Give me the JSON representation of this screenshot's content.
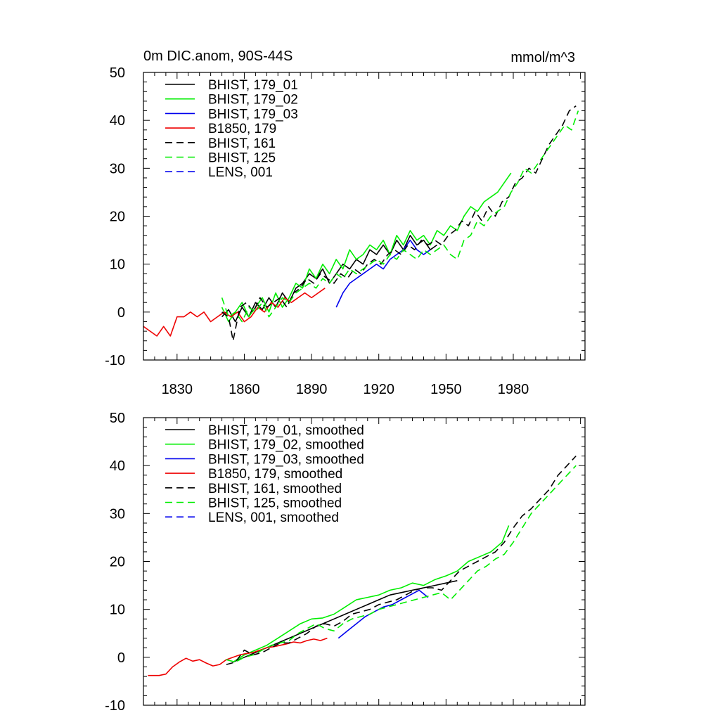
{
  "title_left": "0m DIC.anom, 90S-44S",
  "title_right": "mmol/m^3",
  "chart_data": [
    {
      "type": "line",
      "xlim": [
        1815,
        2012
      ],
      "ylim": [
        -10,
        50
      ],
      "x_ticks": [
        1830,
        1860,
        1890,
        1920,
        1950,
        1980
      ],
      "y_ticks": [
        -10,
        0,
        10,
        20,
        30,
        40,
        50
      ],
      "legend_position": "top-left",
      "series": [
        {
          "name": "BHIST, 179_01",
          "color": "#000000",
          "dash": "solid",
          "x": [
            1850,
            1853,
            1856,
            1859,
            1862,
            1865,
            1868,
            1871,
            1874,
            1877,
            1880,
            1883,
            1886,
            1889,
            1892,
            1895,
            1898,
            1901,
            1904,
            1907,
            1910,
            1913,
            1916,
            1919,
            1922,
            1925,
            1928,
            1931,
            1934,
            1937,
            1940,
            1943,
            1946
          ],
          "y": [
            -1,
            0.5,
            -2,
            1,
            -1,
            2,
            0.5,
            3,
            1,
            4,
            2,
            5,
            6,
            8,
            7,
            9,
            6,
            8,
            10,
            9,
            11,
            10,
            13,
            12,
            14,
            12,
            15,
            13,
            16,
            14,
            15,
            13,
            14
          ]
        },
        {
          "name": "BHIST, 179_02",
          "color": "#00ee00",
          "dash": "solid",
          "x": [
            1850,
            1853,
            1856,
            1859,
            1862,
            1865,
            1868,
            1871,
            1874,
            1877,
            1880,
            1883,
            1886,
            1889,
            1892,
            1895,
            1898,
            1901,
            1904,
            1907,
            1910,
            1913,
            1916,
            1919,
            1922,
            1925,
            1928,
            1931,
            1934,
            1937,
            1940,
            1943,
            1946,
            1949,
            1952,
            1955,
            1958,
            1961,
            1964,
            1967,
            1970,
            1973,
            1976,
            1979
          ],
          "y": [
            1,
            -2,
            0,
            2,
            -1,
            1,
            3,
            0,
            4,
            1,
            3,
            6,
            5,
            9,
            7,
            10,
            8,
            11,
            9,
            13,
            11,
            12,
            14,
            13,
            15,
            12,
            16,
            14,
            17,
            15,
            16,
            14,
            17,
            16,
            18,
            17,
            20,
            22,
            21,
            23,
            24,
            25,
            27,
            29
          ]
        },
        {
          "name": "BHIST, 179_03",
          "color": "#0000ee",
          "dash": "solid",
          "x": [
            1901,
            1904,
            1907,
            1910,
            1913,
            1916,
            1919,
            1922,
            1925,
            1928,
            1931,
            1934,
            1937,
            1940,
            1943
          ],
          "y": [
            1,
            4,
            6,
            7,
            8,
            9,
            10,
            9,
            11,
            12,
            13,
            15,
            13,
            12,
            13
          ]
        },
        {
          "name": "B1850, 179",
          "color": "#ee0000",
          "dash": "solid",
          "x": [
            1815,
            1818,
            1821,
            1824,
            1827,
            1830,
            1833,
            1836,
            1839,
            1842,
            1845,
            1848,
            1851,
            1854,
            1857,
            1860,
            1863,
            1866,
            1869,
            1872,
            1875,
            1878,
            1881,
            1884,
            1887,
            1890,
            1893,
            1896
          ],
          "y": [
            -3,
            -4,
            -5,
            -3,
            -5,
            -1,
            -1,
            0,
            -1,
            0,
            -2,
            -1,
            0,
            -1,
            0,
            -2,
            -1,
            1,
            0,
            2,
            1,
            3,
            2,
            3,
            4,
            3,
            4,
            5
          ]
        },
        {
          "name": "BHIST, 161",
          "color": "#000000",
          "dash": "dashed",
          "x": [
            1850,
            1853,
            1855,
            1858,
            1861,
            1864,
            1867,
            1870,
            1873,
            1876,
            1879,
            1882,
            1885,
            1888,
            1891,
            1894,
            1897,
            1900,
            1903,
            1906,
            1909,
            1912,
            1915,
            1918,
            1921,
            1924,
            1927,
            1930,
            1933,
            1936,
            1939,
            1942,
            1945,
            1948,
            1951,
            1954,
            1957,
            1960,
            1963,
            1966,
            1969,
            1972,
            1975,
            1978,
            1981,
            1984,
            1987,
            1990,
            1993,
            1996,
            1999,
            2002,
            2005,
            2008
          ],
          "y": [
            0,
            -1,
            -6,
            1,
            2,
            0,
            3,
            1,
            2,
            3,
            1,
            4,
            5,
            7,
            6,
            8,
            7,
            6,
            8,
            7,
            9,
            8,
            10,
            11,
            10,
            12,
            13,
            12,
            14,
            13,
            15,
            14,
            15,
            14,
            16,
            17,
            19,
            18,
            21,
            19,
            22,
            20,
            23,
            24,
            27,
            28,
            30,
            29,
            32,
            35,
            37,
            39,
            42,
            43
          ]
        },
        {
          "name": "BHIST, 125",
          "color": "#00ee00",
          "dash": "dashed",
          "x": [
            1850,
            1853,
            1856,
            1859,
            1862,
            1865,
            1868,
            1871,
            1874,
            1877,
            1880,
            1883,
            1886,
            1889,
            1892,
            1895,
            1898,
            1901,
            1904,
            1907,
            1910,
            1913,
            1916,
            1919,
            1922,
            1925,
            1928,
            1931,
            1934,
            1937,
            1940,
            1943,
            1946,
            1949,
            1952,
            1955,
            1958,
            1961,
            1964,
            1967,
            1970,
            1973,
            1976,
            1979,
            1982,
            1985,
            1988,
            1991,
            1994,
            1997,
            2000,
            2003,
            2006,
            2009
          ],
          "y": [
            3,
            -1,
            0,
            -2,
            1,
            0,
            2,
            -1,
            1,
            3,
            2,
            4,
            5,
            6,
            5,
            7,
            6,
            8,
            7,
            9,
            8,
            9,
            10,
            11,
            10,
            12,
            11,
            13,
            12,
            11,
            13,
            12,
            13,
            14,
            12,
            11,
            15,
            16,
            19,
            18,
            20,
            21,
            22,
            25,
            27,
            30,
            29,
            31,
            33,
            35,
            37,
            39,
            38,
            42
          ]
        },
        {
          "name": "LENS, 001",
          "color": "#0000ee",
          "dash": "dashed",
          "x": [],
          "y": []
        }
      ]
    },
    {
      "type": "line",
      "xlim": [
        1815,
        2012
      ],
      "ylim": [
        -10,
        50
      ],
      "x_ticks": [],
      "y_ticks": [
        -10,
        0,
        10,
        20,
        30,
        40,
        50
      ],
      "legend_position": "top-left",
      "series": [
        {
          "name": "BHIST, 179_01, smoothed",
          "color": "#000000",
          "dash": "solid",
          "x": [
            1855,
            1860,
            1865,
            1870,
            1875,
            1880,
            1885,
            1890,
            1895,
            1900,
            1905,
            1910,
            1915,
            1920,
            1925,
            1930,
            1935,
            1940,
            1945,
            1950,
            1955
          ],
          "y": [
            -1,
            0,
            1,
            2,
            3,
            4,
            5,
            6,
            7,
            8,
            9,
            10,
            11,
            12,
            13,
            13.5,
            14,
            14.5,
            15,
            15.5,
            16
          ]
        },
        {
          "name": "BHIST, 179_02, smoothed",
          "color": "#00ee00",
          "dash": "solid",
          "x": [
            1855,
            1860,
            1865,
            1870,
            1875,
            1880,
            1885,
            1890,
            1895,
            1900,
            1905,
            1910,
            1915,
            1920,
            1925,
            1930,
            1935,
            1940,
            1945,
            1950,
            1955,
            1960,
            1965,
            1970,
            1975,
            1978
          ],
          "y": [
            -1,
            0.5,
            1.5,
            2.5,
            4,
            5.5,
            7,
            8,
            8.2,
            9,
            10.5,
            12,
            12.5,
            13,
            14,
            14.5,
            15.5,
            15,
            16.2,
            17,
            18,
            20,
            21,
            22,
            24,
            27.5
          ]
        },
        {
          "name": "BHIST, 179_03, smoothed",
          "color": "#0000ee",
          "dash": "solid",
          "x": [
            1902,
            1906,
            1910,
            1914,
            1918,
            1922,
            1926,
            1930,
            1934,
            1938,
            1942
          ],
          "y": [
            4,
            5.5,
            7,
            8.5,
            9.5,
            10.5,
            11,
            12,
            13,
            14,
            12.5
          ]
        },
        {
          "name": "B1850, 179, smoothed",
          "color": "#ee0000",
          "dash": "solid",
          "x": [
            1817,
            1820,
            1822,
            1825,
            1828,
            1831,
            1834,
            1837,
            1840,
            1843,
            1846,
            1849,
            1852,
            1855,
            1858,
            1861,
            1864,
            1867,
            1870,
            1873,
            1876,
            1879,
            1882,
            1885,
            1888,
            1891,
            1894,
            1897
          ],
          "y": [
            -3.8,
            -3.8,
            -3.8,
            -3.5,
            -2,
            -1,
            -0.2,
            -0.8,
            -0.5,
            -1.2,
            -1.8,
            -1.5,
            -0.5,
            0,
            0.5,
            0.8,
            1,
            1.5,
            2,
            2.2,
            2.5,
            2.8,
            3.2,
            3,
            3.5,
            3.8,
            3.5,
            4
          ]
        },
        {
          "name": "BHIST, 161, smoothed",
          "color": "#000000",
          "dash": "dashed",
          "x": [
            1852,
            1856,
            1860,
            1864,
            1868,
            1872,
            1876,
            1880,
            1884,
            1888,
            1892,
            1896,
            1900,
            1904,
            1908,
            1912,
            1916,
            1920,
            1924,
            1928,
            1932,
            1936,
            1940,
            1944,
            1948,
            1952,
            1956,
            1960,
            1964,
            1968,
            1972,
            1976,
            1980,
            1984,
            1988,
            1992,
            1996,
            2000,
            2004,
            2008
          ],
          "y": [
            -1.5,
            -1,
            1.5,
            0.5,
            1,
            2,
            3,
            3,
            4,
            5,
            6.5,
            7,
            6.5,
            7.5,
            9,
            9.5,
            10,
            11,
            11.5,
            12,
            13,
            14,
            14.5,
            14.5,
            14,
            16,
            18,
            19,
            20,
            21,
            22,
            24,
            27,
            29.5,
            31,
            33,
            35,
            38,
            40,
            42
          ]
        },
        {
          "name": "BHIST, 125, smoothed",
          "color": "#00ee00",
          "dash": "dashed",
          "x": [
            1852,
            1856,
            1860,
            1864,
            1868,
            1872,
            1876,
            1880,
            1884,
            1888,
            1892,
            1896,
            1900,
            1904,
            1908,
            1912,
            1916,
            1920,
            1924,
            1928,
            1932,
            1936,
            1940,
            1944,
            1948,
            1952,
            1956,
            1960,
            1964,
            1968,
            1972,
            1976,
            1980,
            1984,
            1988,
            1992,
            1996,
            2000,
            2004,
            2008
          ],
          "y": [
            -0.5,
            -1,
            0,
            0.5,
            1.5,
            2.5,
            3,
            3.5,
            5,
            6,
            7,
            6,
            5.5,
            7,
            8,
            8.5,
            9,
            10,
            10.5,
            11,
            11.5,
            12,
            12.5,
            13,
            13.5,
            12,
            14,
            16,
            18,
            19,
            20.5,
            21.5,
            24,
            27,
            30,
            32,
            34,
            36,
            38,
            40
          ]
        },
        {
          "name": "LENS, 001, smoothed",
          "color": "#0000ee",
          "dash": "dashed",
          "x": [],
          "y": []
        }
      ]
    }
  ]
}
